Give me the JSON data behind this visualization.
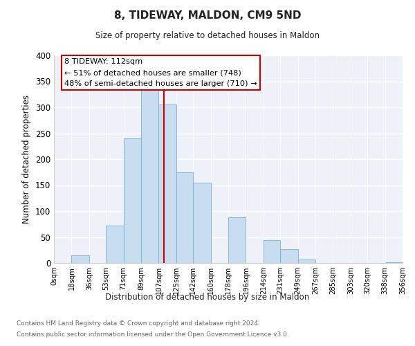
{
  "title": "8, TIDEWAY, MALDON, CM9 5ND",
  "subtitle": "Size of property relative to detached houses in Maldon",
  "xlabel": "Distribution of detached houses by size in Maldon",
  "ylabel": "Number of detached properties",
  "bar_color": "#c8ddf0",
  "bar_edge_color": "#7aaed0",
  "vline_x": 112,
  "vline_color": "#cc0000",
  "annotation_title": "8 TIDEWAY: 112sqm",
  "annotation_line1": "← 51% of detached houses are smaller (748)",
  "annotation_line2": "48% of semi-detached houses are larger (710) →",
  "annotation_box_color": "#ffffff",
  "annotation_box_edge": "#cc0000",
  "bin_edges": [
    0,
    18,
    36,
    53,
    71,
    89,
    107,
    125,
    142,
    160,
    178,
    196,
    214,
    231,
    249,
    267,
    285,
    303,
    320,
    338,
    356
  ],
  "bin_counts": [
    0,
    15,
    0,
    72,
    240,
    335,
    305,
    175,
    155,
    0,
    88,
    0,
    44,
    27,
    7,
    0,
    0,
    0,
    0,
    2
  ],
  "xlim": [
    0,
    356
  ],
  "ylim": [
    0,
    400
  ],
  "yticks": [
    0,
    50,
    100,
    150,
    200,
    250,
    300,
    350,
    400
  ],
  "tick_labels": [
    "0sqm",
    "18sqm",
    "36sqm",
    "53sqm",
    "71sqm",
    "89sqm",
    "107sqm",
    "125sqm",
    "142sqm",
    "160sqm",
    "178sqm",
    "196sqm",
    "214sqm",
    "231sqm",
    "249sqm",
    "267sqm",
    "285sqm",
    "303sqm",
    "320sqm",
    "338sqm",
    "356sqm"
  ],
  "footer_line1": "Contains HM Land Registry data © Crown copyright and database right 2024.",
  "footer_line2": "Contains public sector information licensed under the Open Government Licence v3.0.",
  "bg_color": "#eef2f8"
}
